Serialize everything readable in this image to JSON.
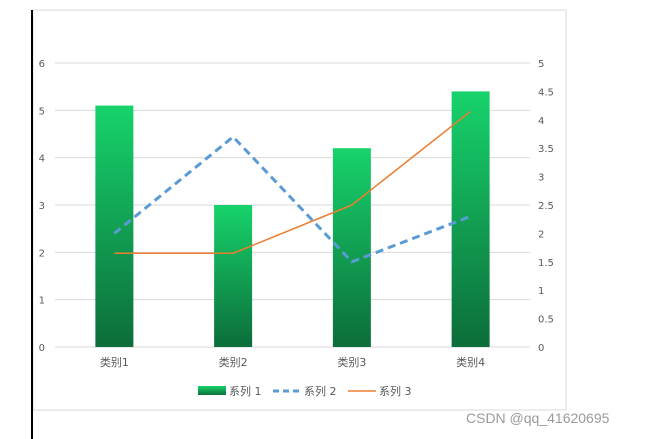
{
  "chart_data": {
    "type": "bar",
    "title": "",
    "categories": [
      "类别1",
      "类别2",
      "类别3",
      "类别4"
    ],
    "series": [
      {
        "name": "系列 1",
        "kind": "bar",
        "axis": "left",
        "values": [
          5.1,
          3.0,
          4.2,
          5.4
        ],
        "color_top": "#17d36b",
        "color_bottom": "#0c6d3a"
      },
      {
        "name": "系列 2",
        "kind": "line",
        "axis": "right",
        "style": "dashed",
        "values": [
          2.0,
          3.7,
          1.5,
          2.3
        ],
        "color": "#5b9bd5"
      },
      {
        "name": "系列 3",
        "kind": "line",
        "axis": "right",
        "style": "solid",
        "values": [
          1.65,
          1.65,
          2.5,
          4.15
        ],
        "color": "#ed7d31"
      }
    ],
    "y_left": {
      "ylim": [
        0,
        6
      ],
      "ticks": [
        "0",
        "1",
        "2",
        "3",
        "4",
        "5",
        "6"
      ]
    },
    "y_right": {
      "ylim": [
        0,
        5
      ],
      "ticks": [
        "0",
        "0.5",
        "1",
        "1.5",
        "2",
        "2.5",
        "3",
        "3.5",
        "4",
        "4.5",
        "5"
      ]
    },
    "grid": true,
    "legend_position": "bottom"
  },
  "watermark": "CSDN @qq_41620695"
}
